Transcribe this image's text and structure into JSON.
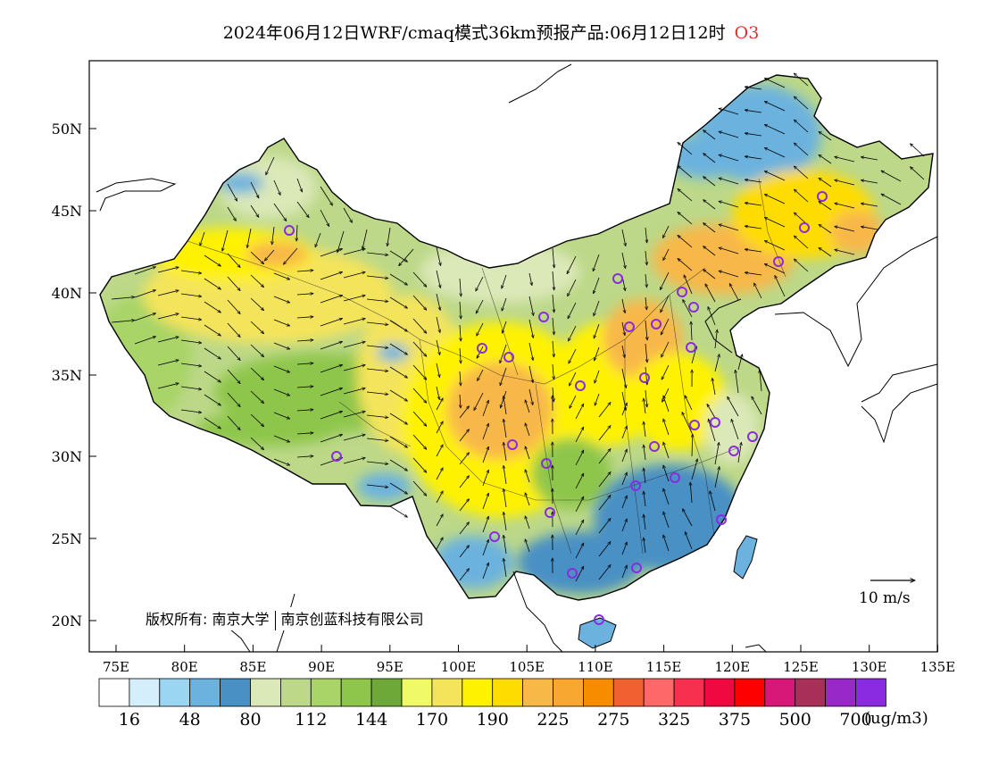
{
  "title": {
    "main": "2024年06月12日WRF/cmaq模式36km预报产品:06月12日12时",
    "species": "O3"
  },
  "axes": {
    "lat_labels": [
      "50N",
      "45N",
      "40N",
      "35N",
      "30N",
      "25N",
      "20N"
    ],
    "lon_labels": [
      "75E",
      "80E",
      "85E",
      "90E",
      "95E",
      "100E",
      "105E",
      "110E",
      "115E",
      "120E",
      "125E",
      "130E",
      "135E"
    ]
  },
  "copyright": {
    "prefix": "版权所有:",
    "org1": "南京大学",
    "org2": "南京创蓝科技有限公司"
  },
  "wind_reference": "10 m/s",
  "legend": {
    "unit": "(ug/m3)",
    "colors": [
      "#ffffff",
      "#d4eefb",
      "#9ad6f2",
      "#6cb2de",
      "#4990c4",
      "#dbe8b8",
      "#bcd888",
      "#a8d468",
      "#8ec64c",
      "#6ea838",
      "#f0fa68",
      "#f4e45c",
      "#fff200",
      "#ffdc00",
      "#f8b848",
      "#f8a830",
      "#f88c00",
      "#f06030",
      "#ff6868",
      "#f83050",
      "#f00840",
      "#ff0000",
      "#d81878",
      "#a83058",
      "#9828c8",
      "#8a2be2"
    ],
    "labels": [
      "16",
      "48",
      "80",
      "112",
      "144",
      "170",
      "190",
      "225",
      "275",
      "325",
      "375",
      "500",
      "700"
    ]
  }
}
